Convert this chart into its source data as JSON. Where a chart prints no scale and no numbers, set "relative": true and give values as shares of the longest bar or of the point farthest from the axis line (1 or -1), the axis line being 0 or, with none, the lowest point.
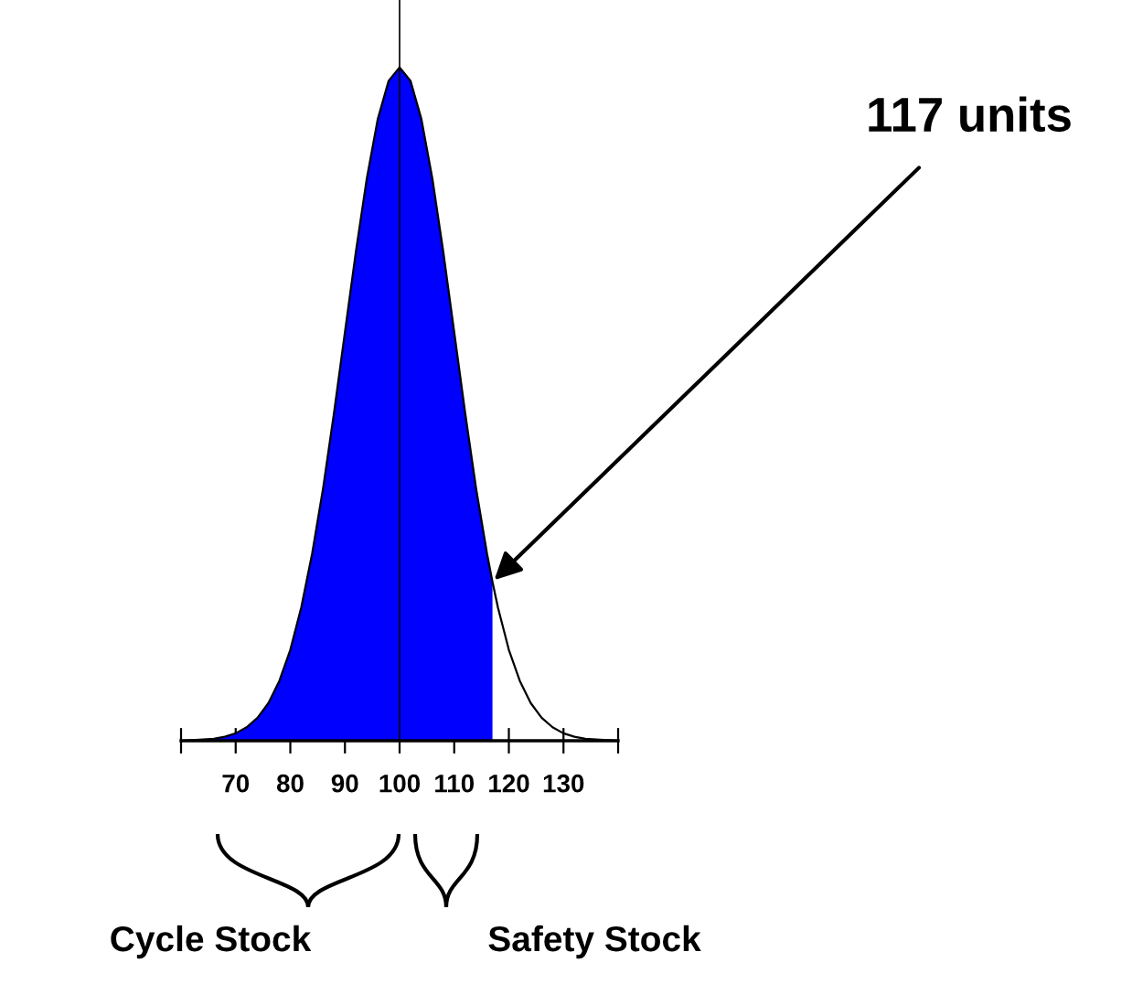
{
  "chart_data": {
    "type": "area",
    "relative": true,
    "xlim": [
      60,
      140
    ],
    "xticks": [
      {
        "value": 60,
        "label": null
      },
      70,
      80,
      90,
      100,
      110,
      120,
      130,
      {
        "value": 140,
        "label": null
      }
    ],
    "series": [
      {
        "color": "#0000ff",
        "x": [
          60,
          62,
          64,
          66,
          68,
          70,
          72,
          74,
          76,
          78,
          80,
          82,
          84,
          86,
          88,
          90,
          92,
          94,
          96,
          98,
          100,
          102,
          104,
          106,
          108,
          110,
          112,
          114,
          116,
          117
        ],
        "values": [
          0,
          0.001,
          0.002,
          0.003,
          0.006,
          0.011,
          0.02,
          0.034,
          0.056,
          0.089,
          0.135,
          0.198,
          0.278,
          0.375,
          0.487,
          0.607,
          0.726,
          0.835,
          0.923,
          0.98,
          1,
          0.98,
          0.923,
          0.835,
          0.726,
          0.607,
          0.487,
          0.375,
          0.278,
          0.236
        ]
      },
      {
        "type": "line",
        "color": "#000000",
        "x": [
          60,
          62,
          64,
          66,
          68,
          70,
          72,
          74,
          76,
          78,
          80,
          82,
          84,
          86,
          88,
          90,
          92,
          94,
          96,
          98,
          100,
          102,
          104,
          106,
          108,
          110,
          112,
          114,
          116,
          117,
          118,
          120,
          122,
          124,
          126,
          128,
          130,
          132,
          134,
          136,
          138,
          140
        ],
        "values": [
          0,
          0.001,
          0.002,
          0.003,
          0.006,
          0.011,
          0.02,
          0.034,
          0.056,
          0.089,
          0.135,
          0.198,
          0.278,
          0.375,
          0.487,
          0.607,
          0.726,
          0.835,
          0.923,
          0.98,
          1,
          0.98,
          0.923,
          0.835,
          0.726,
          0.607,
          0.487,
          0.375,
          0.278,
          0.236,
          0.198,
          0.135,
          0.089,
          0.056,
          0.034,
          0.02,
          0.011,
          0.006,
          0.003,
          0.002,
          0.001,
          0
        ]
      }
    ],
    "ref_lines": [
      {
        "axis": "x",
        "value": 100,
        "color": "#000000"
      }
    ],
    "annotations": [
      {
        "text": "117 units",
        "x": 117,
        "y": 0.236
      },
      "Cycle Stock",
      "Safety Stock"
    ]
  }
}
